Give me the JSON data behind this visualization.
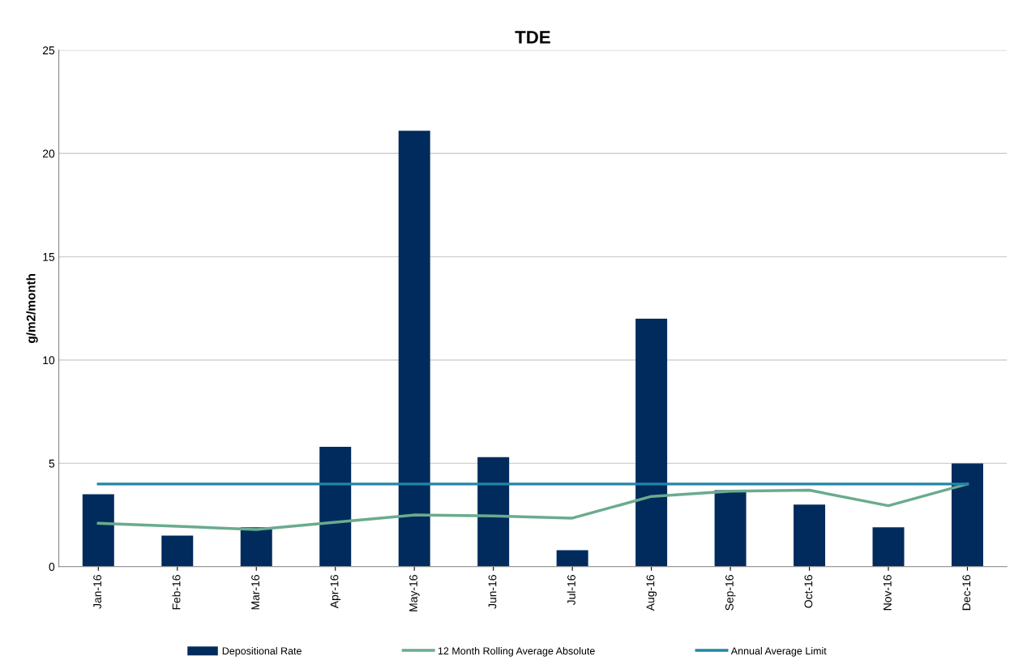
{
  "chart_data": {
    "type": "bar",
    "title": "TDE",
    "ylabel": "g/m2/month",
    "categories": [
      "Jan-16",
      "Feb-16",
      "Mar-16",
      "Apr-16",
      "May-16",
      "Jun-16",
      "Jul-16",
      "Aug-16",
      "Sep-16",
      "Oct-16",
      "Nov-16",
      "Dec-16"
    ],
    "series": [
      {
        "name": "Depositional Rate",
        "color": "#002b5c",
        "values": [
          3.5,
          1.5,
          1.9,
          5.8,
          21.1,
          5.3,
          0.8,
          12.0,
          3.7,
          3.0,
          1.9,
          5.0
        ]
      },
      {
        "name": "12 Month Rolling Average Absolute",
        "type": "line",
        "color": "#6aab8e",
        "values": [
          2.1,
          1.95,
          1.8,
          2.15,
          2.5,
          2.45,
          2.35,
          3.4,
          3.65,
          3.7,
          2.95,
          4.0
        ]
      },
      {
        "name": "Annual Average Limit",
        "type": "line",
        "color": "#1f86a8",
        "values": [
          4,
          4,
          4,
          4,
          4,
          4,
          4,
          4,
          4,
          4,
          4,
          4
        ]
      }
    ],
    "ylim": [
      0,
      25
    ],
    "yticks": [
      0,
      5,
      10,
      15,
      20,
      25
    ],
    "grid": "y",
    "legend": "bottom",
    "marker": "none",
    "line_style": "solid"
  }
}
